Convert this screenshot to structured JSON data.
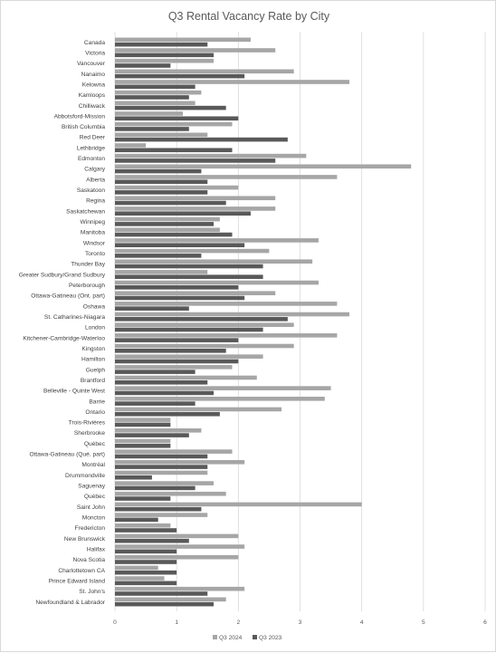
{
  "chart_data": {
    "type": "bar",
    "orientation": "horizontal",
    "title": "Q3 Rental Vacancy Rate by City",
    "xlim": [
      0,
      6
    ],
    "x_ticks": [
      "0",
      "1",
      "2",
      "3",
      "4",
      "5",
      "6"
    ],
    "grid": "vertical",
    "legend_position": "bottom",
    "categories": [
      "Canada",
      "Victoria",
      "Vancouver",
      "Nanaimo",
      "Kelowna",
      "Kamloops",
      "Chilliwack",
      "Abbotsford-Mission",
      "British Columbia",
      "Red Deer",
      "Lethbridge",
      "Edmonton",
      "Calgary",
      "Alberta",
      "Saskatoon",
      "Regina",
      "Saskatchewan",
      "Winnipeg",
      "Manitoba",
      "Windsor",
      "Toronto",
      "Thunder Bay",
      "Greater Sudbury/Grand Sudbury",
      "Peterborough",
      "Ottawa-Gatineau  (Ont. part)",
      "Oshawa",
      "St. Catharines-Niagara",
      "London",
      "Kitchener-Cambridge-Waterloo",
      "Kingston",
      "Hamilton",
      "Guelph",
      "Brantford",
      "Belleville - Quinte West",
      "Barrie",
      "Ontario",
      "Trois-Rivières",
      "Sherbrooke",
      "Québec",
      "Ottawa-Gatineau  (Qué. part)",
      "Montréal",
      "Drummondville",
      "Saguenay",
      "Québec",
      "Saint John",
      "Moncton",
      "Fredericton",
      "New Brunswick",
      "Halifax",
      "Nova Scotia",
      "Charlottetown CA",
      "Prince Edward Island",
      "St. John's",
      "Newfoundland & Labrador"
    ],
    "series": [
      {
        "name": "Q3 2024",
        "color": "#a6a6a6",
        "values": [
          2.2,
          2.6,
          1.6,
          2.9,
          3.8,
          1.4,
          1.3,
          1.1,
          1.9,
          1.5,
          0.5,
          3.1,
          4.8,
          3.6,
          2.0,
          2.6,
          2.6,
          1.7,
          1.7,
          3.3,
          2.5,
          3.2,
          1.5,
          3.3,
          2.6,
          3.6,
          3.8,
          2.9,
          3.6,
          2.9,
          2.4,
          1.9,
          2.3,
          3.5,
          3.4,
          2.7,
          0.9,
          1.4,
          0.9,
          1.9,
          2.1,
          1.5,
          1.6,
          1.8,
          4.0,
          1.5,
          0.9,
          2.0,
          2.1,
          2.0,
          0.7,
          0.8,
          2.1,
          1.8
        ]
      },
      {
        "name": "Q3 2023",
        "color": "#595959",
        "values": [
          1.5,
          1.6,
          0.9,
          2.1,
          1.3,
          1.2,
          1.8,
          2.0,
          1.2,
          2.8,
          1.9,
          2.6,
          1.4,
          1.5,
          1.5,
          1.8,
          2.2,
          1.6,
          1.9,
          2.1,
          1.4,
          2.4,
          2.4,
          2.0,
          2.1,
          1.2,
          2.8,
          2.4,
          2.0,
          1.8,
          2.0,
          1.3,
          1.5,
          1.6,
          1.3,
          1.7,
          0.9,
          1.2,
          0.9,
          1.5,
          1.5,
          0.6,
          1.3,
          0.9,
          1.4,
          0.7,
          1.0,
          1.2,
          1.0,
          1.0,
          1.0,
          1.0,
          1.5,
          1.6
        ]
      }
    ]
  }
}
